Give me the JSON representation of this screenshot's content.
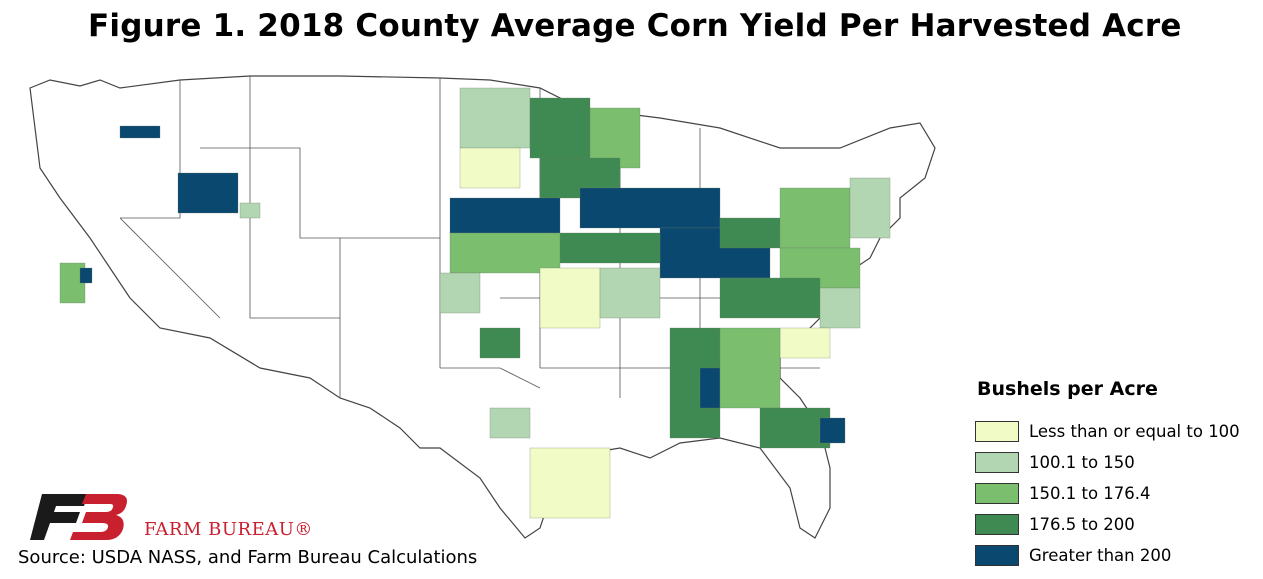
{
  "title": "Figure 1. 2018 County Average Corn Yield Per Harvested Acre",
  "legend": {
    "title": "Bushels per Acre",
    "items": [
      {
        "label": "Less than or equal to 100",
        "color": "#f1fbc6"
      },
      {
        "label": "100.1 to 150",
        "color": "#b2d5b2"
      },
      {
        "label": "150.1 to 176.4",
        "color": "#7bbf6e"
      },
      {
        "label": "176.5 to 200",
        "color": "#3f8a52"
      },
      {
        "label": "Greater than 200",
        "color": "#0a4870"
      }
    ]
  },
  "logo": {
    "text": "FARM BUREAU®",
    "color": "#c8202f"
  },
  "source": "Source: USDA NASS, and Farm Bureau Calculations"
}
